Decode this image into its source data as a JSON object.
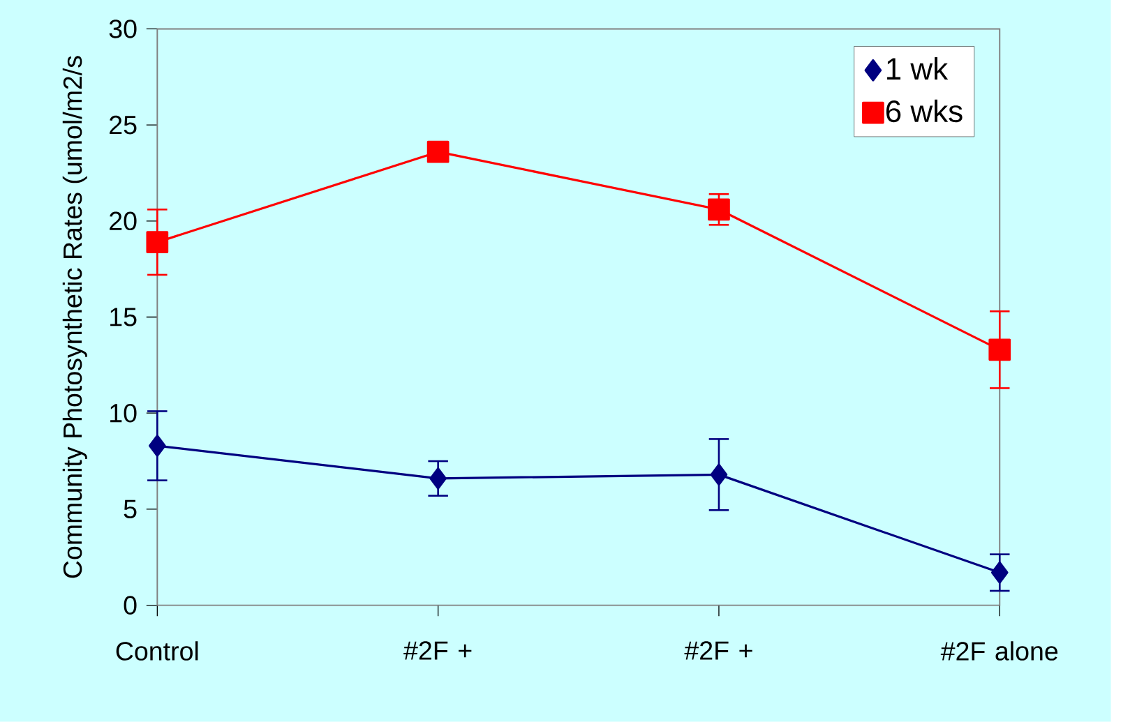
{
  "chart_data": {
    "type": "line",
    "ylabel": "Community Photosynthetic Rates (umol/m2/s",
    "categories": [
      "Control",
      "#2F +",
      "#2F +",
      "#2F alone"
    ],
    "series": [
      {
        "name": "1 wk",
        "color": "#000080",
        "marker": "diamond",
        "values": [
          8.3,
          6.6,
          6.8,
          1.7
        ],
        "errors": [
          1.8,
          0.9,
          1.85,
          0.95
        ]
      },
      {
        "name": "6 wks",
        "color": "#ff0000",
        "marker": "square",
        "values": [
          18.9,
          23.6,
          20.6,
          13.3
        ],
        "errors": [
          1.7,
          0.5,
          0.8,
          2.0
        ]
      }
    ],
    "ylim": [
      0,
      30
    ],
    "yticks": [
      0,
      5,
      10,
      15,
      20,
      25,
      30
    ],
    "legend": "top right",
    "line_style": "solid",
    "grid": false
  }
}
